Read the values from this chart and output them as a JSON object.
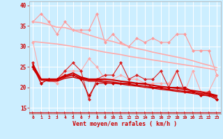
{
  "xlabel": "Vent moyen/en rafales ( km/h )",
  "bg_color": "#cceeff",
  "grid_color": "#ffffff",
  "ylim": [
    13.5,
    41
  ],
  "yticks": [
    15,
    20,
    25,
    30,
    35,
    40
  ],
  "xticks": [
    0,
    1,
    2,
    3,
    4,
    5,
    6,
    7,
    8,
    9,
    10,
    11,
    12,
    13,
    14,
    15,
    16,
    17,
    18,
    19,
    20,
    21,
    22,
    23
  ],
  "series": [
    {
      "y": [
        36,
        38,
        36,
        33,
        36,
        34,
        34,
        34,
        38,
        31,
        33,
        31,
        30,
        32,
        31,
        32,
        31,
        31,
        33,
        33,
        29,
        29,
        29,
        23
      ],
      "color": "#ff9999",
      "lw": 0.8,
      "marker": "D",
      "ms": 2.0
    },
    {
      "y": [
        36.0,
        35.8,
        35.3,
        34.7,
        34.6,
        34.0,
        33.4,
        32.8,
        32.2,
        31.6,
        31.2,
        30.6,
        30.0,
        29.5,
        29.1,
        28.6,
        28.2,
        27.8,
        27.4,
        27.0,
        26.5,
        25.9,
        25.4,
        24.8
      ],
      "color": "#ffaaaa",
      "lw": 1.2,
      "marker": null,
      "ms": 0
    },
    {
      "y": [
        31.2,
        31.0,
        30.8,
        30.6,
        30.3,
        30.0,
        29.7,
        29.4,
        29.0,
        28.6,
        28.3,
        28.0,
        27.6,
        27.3,
        27.0,
        26.7,
        26.4,
        26.1,
        25.8,
        25.5,
        25.2,
        24.9,
        24.6,
        24.2
      ],
      "color": "#ffaaaa",
      "lw": 1.2,
      "marker": null,
      "ms": 0
    },
    {
      "y": [
        31,
        22,
        22,
        21,
        24,
        24,
        24,
        27,
        25,
        22,
        22,
        23,
        22,
        22,
        21,
        21,
        21,
        21,
        24,
        19,
        24,
        19,
        19,
        23
      ],
      "color": "#ffaaaa",
      "lw": 0.8,
      "marker": "D",
      "ms": 2.0
    },
    {
      "y": [
        26,
        21,
        22,
        22,
        24,
        26,
        24,
        17,
        22,
        23,
        23,
        26,
        22,
        23,
        22,
        22,
        24,
        20,
        24,
        19,
        19,
        18,
        19,
        17
      ],
      "color": "#dd2222",
      "lw": 0.8,
      "marker": "D",
      "ms": 2.0
    },
    {
      "y": [
        25.5,
        22.0,
        22.0,
        22.0,
        22.8,
        23.5,
        22.5,
        22.0,
        22.0,
        22.0,
        21.8,
        21.5,
        21.3,
        21.0,
        20.8,
        20.5,
        20.2,
        20.0,
        19.8,
        19.5,
        19.2,
        18.9,
        18.5,
        18.0
      ],
      "color": "#cc0000",
      "lw": 1.5,
      "marker": null,
      "ms": 0
    },
    {
      "y": [
        25.0,
        22.0,
        21.8,
        21.8,
        22.5,
        23.0,
        22.2,
        21.8,
        21.8,
        21.5,
        21.3,
        21.0,
        20.8,
        20.5,
        20.3,
        20.0,
        19.8,
        19.5,
        19.3,
        19.0,
        18.8,
        18.5,
        18.2,
        17.8
      ],
      "color": "#cc0000",
      "lw": 1.2,
      "marker": null,
      "ms": 0
    },
    {
      "y": [
        24.5,
        21.8,
        21.5,
        21.5,
        22.2,
        22.5,
        22.0,
        21.5,
        21.5,
        21.2,
        21.0,
        20.8,
        20.5,
        20.3,
        20.0,
        19.8,
        19.5,
        19.3,
        19.0,
        18.8,
        18.5,
        18.2,
        17.9,
        17.5
      ],
      "color": "#cc0000",
      "lw": 1.0,
      "marker": null,
      "ms": 0
    },
    {
      "y": [
        25,
        21,
        22,
        22,
        23,
        23,
        22,
        18,
        21,
        21,
        21,
        21,
        21,
        21,
        21,
        20,
        20,
        20,
        20,
        20,
        19,
        18,
        18,
        17
      ],
      "color": "#cc0000",
      "lw": 0.8,
      "marker": "D",
      "ms": 2.0
    },
    {
      "y": [
        13.8,
        13.8,
        13.8,
        13.8,
        13.8,
        13.8,
        13.8,
        13.8,
        13.8,
        13.8,
        13.8,
        13.8,
        13.8,
        13.8,
        13.8,
        13.8,
        13.8,
        13.8,
        13.8,
        13.8,
        13.8,
        13.8,
        13.8,
        13.8
      ],
      "color": "#cc0000",
      "lw": 0.8,
      "marker": "4",
      "ms": 3.5,
      "linestyle": "--"
    }
  ]
}
